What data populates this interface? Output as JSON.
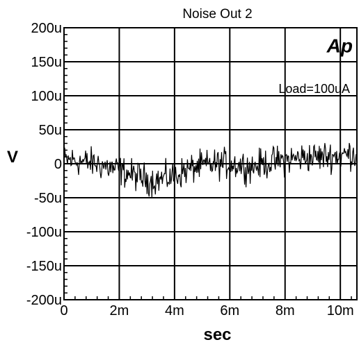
{
  "chart_data": {
    "type": "line",
    "title": "Noise Out 2",
    "xlabel": "sec",
    "ylabel": "V",
    "annotation": "Load=100uA",
    "logo": "Ap",
    "xlim": [
      0,
      0.0106
    ],
    "ylim": [
      -0.0002,
      0.0002
    ],
    "x_ticks": [
      {
        "value": 0,
        "label": "0"
      },
      {
        "value": 0.002,
        "label": "2m"
      },
      {
        "value": 0.004,
        "label": "4m"
      },
      {
        "value": 0.006,
        "label": "6m"
      },
      {
        "value": 0.008,
        "label": "8m"
      },
      {
        "value": 0.01,
        "label": "10m"
      }
    ],
    "y_ticks": [
      {
        "value": 0.0002,
        "label": "200u"
      },
      {
        "value": 0.00015,
        "label": "150u"
      },
      {
        "value": 0.0001,
        "label": "100u"
      },
      {
        "value": 5e-05,
        "label": "50u"
      },
      {
        "value": 0,
        "label": "0"
      },
      {
        "value": -5e-05,
        "label": "-50u"
      },
      {
        "value": -0.0001,
        "label": "-100u"
      },
      {
        "value": -0.00015,
        "label": "-150u"
      },
      {
        "value": -0.0002,
        "label": "-200u"
      }
    ],
    "grid": true,
    "series": [
      {
        "color": "#000000",
        "x": [
          0,
          0.0004,
          0.0008,
          0.0012,
          0.0016,
          0.002,
          0.0024,
          0.0028,
          0.0032,
          0.0036,
          0.004,
          0.0044,
          0.0048,
          0.0052,
          0.0056,
          0.006,
          0.0064,
          0.0068,
          0.0072,
          0.0076,
          0.008,
          0.0084,
          0.0088,
          0.0092,
          0.0096,
          0.01,
          0.0104,
          0.0106
        ],
        "y": [
          5e-06,
          5e-06,
          2e-06,
          0.0,
          -5e-06,
          -1e-05,
          -1.5e-05,
          -2e-05,
          -2.5e-05,
          -2.2e-05,
          -1.8e-05,
          -1e-05,
          -5e-06,
          -2e-06,
          0.0,
          0.0,
          -2e-06,
          -5e-06,
          0.0,
          3e-06,
          5e-06,
          8e-06,
          1e-05,
          1e-05,
          1.2e-05,
          1.2e-05,
          1.5e-05,
          1.5e-05
        ]
      }
    ]
  }
}
